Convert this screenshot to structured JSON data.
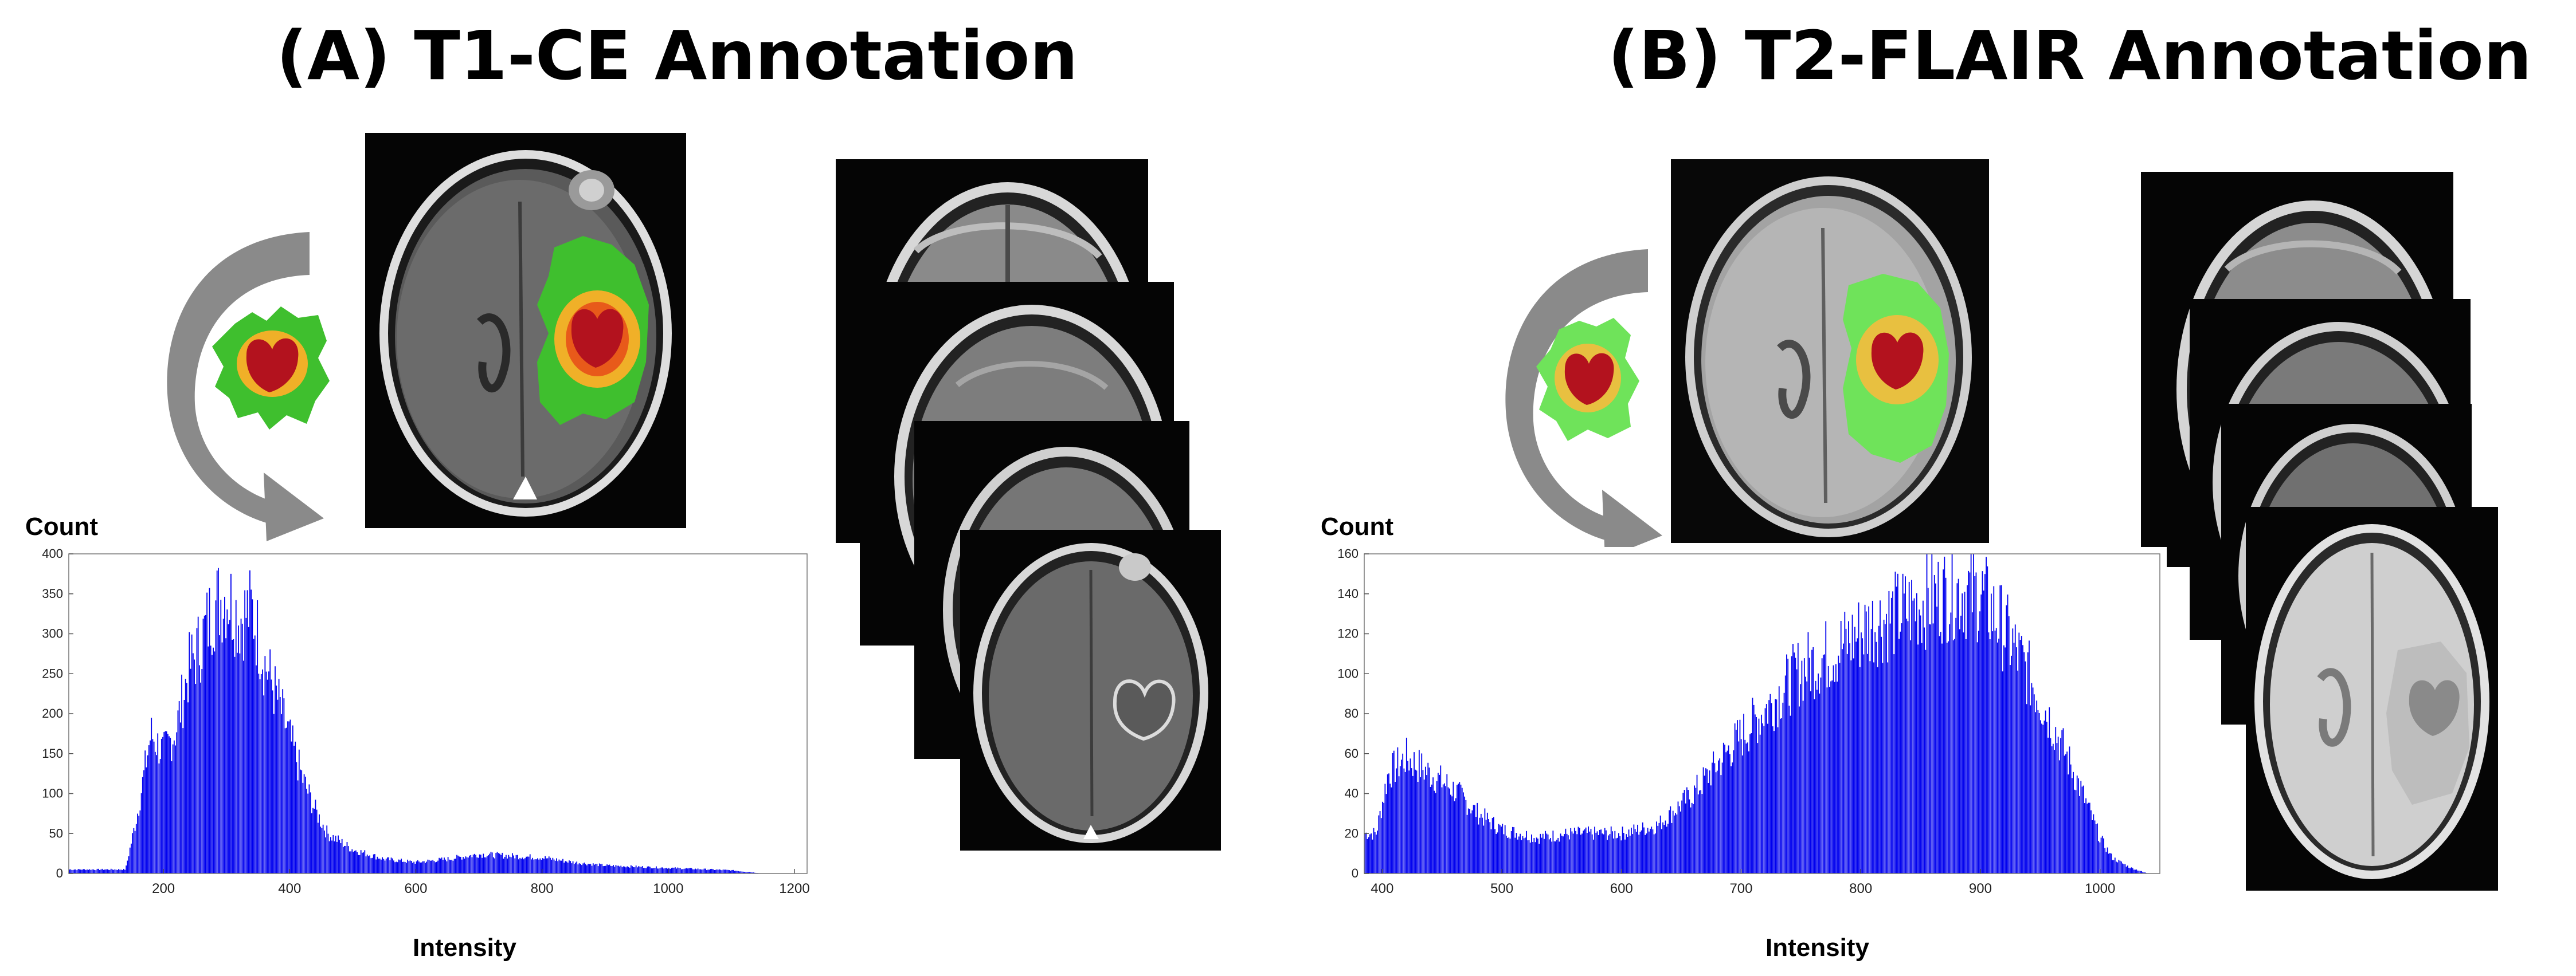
{
  "panels": [
    {
      "title": "(A) T1-CE Annotation",
      "colors": {
        "edema": "#3fbf2e",
        "enhancing": "#f0b028",
        "core": "#b3121e"
      }
    },
    {
      "title": "(B) T2-FLAIR Annotation",
      "colors": {
        "edema": "#6fe35a",
        "enhancing": "#e8c040",
        "core": "#b3121e"
      }
    }
  ],
  "chart_data": [
    {
      "type": "bar",
      "ylabel": "Count",
      "xlabel": "Intensity",
      "xlim": [
        50,
        1220
      ],
      "ylim": [
        0,
        400
      ],
      "x_ticks": [
        200,
        400,
        600,
        800,
        1000,
        1200
      ],
      "y_ticks": [
        0,
        50,
        100,
        150,
        200,
        250,
        300,
        350,
        400
      ],
      "color": "#0000ee",
      "x": [
        140,
        160,
        180,
        200,
        220,
        240,
        260,
        280,
        300,
        320,
        340,
        360,
        380,
        400,
        420,
        440,
        460,
        500,
        550,
        600,
        650,
        700,
        750,
        800,
        850,
        900,
        1000,
        1100,
        1150
      ],
      "values": [
        5,
        80,
        175,
        150,
        180,
        255,
        290,
        335,
        350,
        320,
        330,
        265,
        220,
        170,
        120,
        80,
        50,
        30,
        18,
        14,
        18,
        24,
        22,
        20,
        14,
        10,
        7,
        4,
        0
      ]
    },
    {
      "type": "bar",
      "ylabel": "Count",
      "xlabel": "Intensity",
      "xlim": [
        385,
        1050
      ],
      "ylim": [
        0,
        160
      ],
      "x_ticks": [
        400,
        500,
        600,
        700,
        800,
        900,
        1000
      ],
      "y_ticks": [
        0,
        20,
        40,
        60,
        80,
        100,
        120,
        140,
        160
      ],
      "color": "#0000ee",
      "x": [
        395,
        405,
        420,
        440,
        460,
        480,
        500,
        530,
        560,
        600,
        630,
        660,
        690,
        720,
        750,
        780,
        810,
        840,
        860,
        880,
        900,
        920,
        940,
        960,
        980,
        1000,
        1010,
        1025,
        1040
      ],
      "values": [
        20,
        50,
        58,
        50,
        42,
        30,
        22,
        18,
        20,
        20,
        24,
        40,
        62,
        82,
        102,
        112,
        125,
        132,
        138,
        142,
        140,
        122,
        100,
        75,
        48,
        18,
        8,
        3,
        0
      ]
    }
  ]
}
